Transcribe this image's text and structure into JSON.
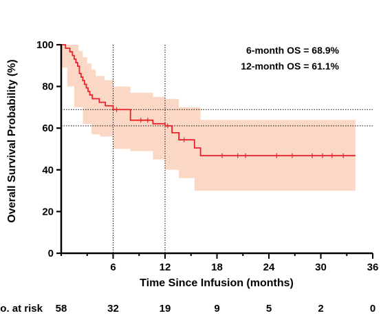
{
  "chart_data": {
    "type": "line",
    "subtype": "kaplan-meier",
    "xlabel": "Time Since Infusion (months)",
    "ylabel": "Overall Survival Probability (%)",
    "xlim": [
      0,
      36
    ],
    "ylim": [
      0,
      100
    ],
    "x_ticks": [
      6,
      12,
      18,
      24,
      30,
      36
    ],
    "y_ticks": [
      0,
      20,
      40,
      60,
      80,
      100
    ],
    "grid": false,
    "colors": {
      "line": "#e8202a",
      "band": "#fbd8c6",
      "axis": "#000000"
    },
    "annotations": [
      "6-month OS = 68.9%",
      "12-month OS = 61.1%"
    ],
    "reference_lines": {
      "vertical_x": [
        6,
        12
      ],
      "horizontal_y": [
        68.9,
        61.1
      ]
    },
    "survival_steps": [
      [
        0,
        100
      ],
      [
        0.5,
        98.3
      ],
      [
        1.0,
        96.6
      ],
      [
        1.3,
        94.8
      ],
      [
        1.5,
        93.1
      ],
      [
        1.7,
        91.4
      ],
      [
        1.9,
        89.7
      ],
      [
        2.1,
        86.2
      ],
      [
        2.3,
        84.5
      ],
      [
        2.5,
        82.8
      ],
      [
        2.7,
        81.0
      ],
      [
        2.9,
        79.3
      ],
      [
        3.1,
        77.6
      ],
      [
        3.3,
        75.9
      ],
      [
        3.6,
        74.1
      ],
      [
        4.4,
        72.4
      ],
      [
        5.1,
        70.7
      ],
      [
        6.0,
        68.9
      ],
      [
        8.0,
        63.8
      ],
      [
        10.6,
        62.1
      ],
      [
        12.0,
        61.1
      ],
      [
        12.8,
        57.8
      ],
      [
        13.6,
        54.4
      ],
      [
        15.4,
        50.5
      ],
      [
        16.1,
        46.8
      ],
      [
        34,
        46.8
      ]
    ],
    "ci_upper": [
      [
        0,
        100
      ],
      [
        1.5,
        100
      ],
      [
        2.0,
        97.0
      ],
      [
        2.5,
        94.0
      ],
      [
        3.0,
        91.0
      ],
      [
        3.5,
        88.0
      ],
      [
        4.0,
        85.0
      ],
      [
        5.0,
        83.0
      ],
      [
        6.0,
        80.0
      ],
      [
        8.0,
        77.0
      ],
      [
        10.6,
        75.0
      ],
      [
        12.0,
        74.0
      ],
      [
        13.6,
        70.0
      ],
      [
        16.1,
        64.0
      ],
      [
        34,
        64.0
      ]
    ],
    "ci_lower": [
      [
        0,
        100
      ],
      [
        0.7,
        89.0
      ],
      [
        1.5,
        80.0
      ],
      [
        2.5,
        70.0
      ],
      [
        3.5,
        62.0
      ],
      [
        4.5,
        57.0
      ],
      [
        6.0,
        56.0
      ],
      [
        8.0,
        50.0
      ],
      [
        10.6,
        49.0
      ],
      [
        12.0,
        45.0
      ],
      [
        13.6,
        40.0
      ],
      [
        15.4,
        36.0
      ],
      [
        16.1,
        30.0
      ],
      [
        34,
        30.0
      ]
    ],
    "censor_marks": [
      [
        6.4,
        68.9
      ],
      [
        9.2,
        63.8
      ],
      [
        10.0,
        63.8
      ],
      [
        12.3,
        61.1
      ],
      [
        14.2,
        54.4
      ],
      [
        18.6,
        46.8
      ],
      [
        20.4,
        46.8
      ],
      [
        21.3,
        46.8
      ],
      [
        24.9,
        46.8
      ],
      [
        26.7,
        46.8
      ],
      [
        29.0,
        46.8
      ],
      [
        30.2,
        46.8
      ],
      [
        31.3,
        46.8
      ],
      [
        32.6,
        46.8
      ]
    ],
    "risk_table": {
      "label": "No. at risk",
      "times": [
        0,
        6,
        12,
        18,
        24,
        30,
        36
      ],
      "values": [
        "58",
        "32",
        "19",
        "9",
        "5",
        "2",
        "0"
      ]
    }
  }
}
